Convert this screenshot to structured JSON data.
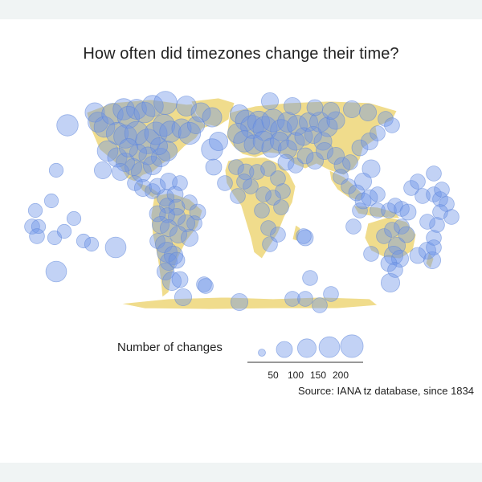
{
  "title": "How often did timezones change their time?",
  "legend": {
    "title": "Number of changes",
    "breaks": [
      50,
      100,
      150,
      200
    ],
    "labels": [
      "50",
      "100",
      "150",
      "200"
    ]
  },
  "source": "Source: IANA tz database, since 1834",
  "colors": {
    "land": "#f0dc8c",
    "border": "#ffffff",
    "bubble_fill": "#6d94e8",
    "bubble_stroke": "#5b83d9",
    "background": "#ffffff",
    "outer": "#f0f4f4"
  },
  "chart_data": {
    "type": "scatter",
    "title": "How often did timezones change their time?",
    "size_variable": "Number of changes",
    "size_breaks": [
      50,
      100,
      150,
      200
    ],
    "legend_placement": "bottom-center",
    "note": "Bubbles placed at timezone locations on a world map; sizes scaled by number of changes"
  }
}
